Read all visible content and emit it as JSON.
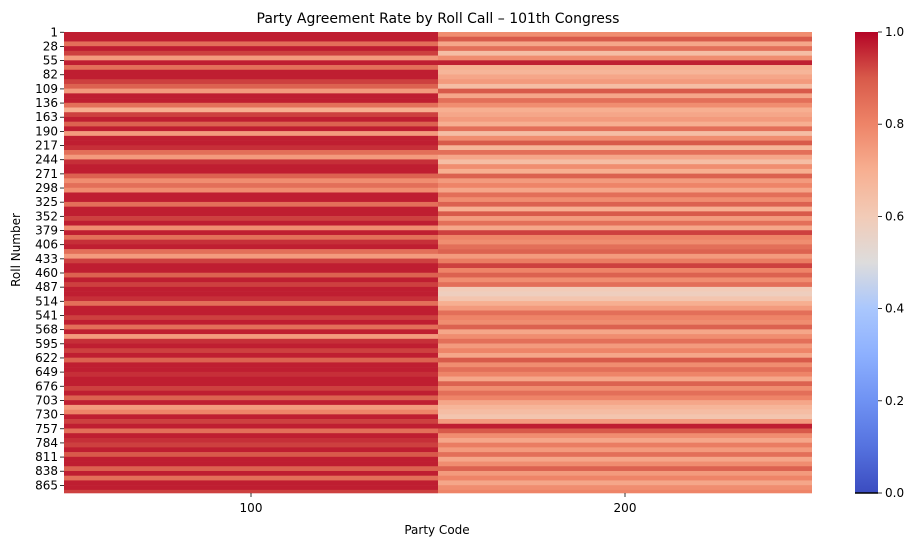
{
  "chart_data": {
    "type": "heatmap",
    "title": "Party Agreement Rate by Roll Call – 101th Congress",
    "xlabel": "Party Code",
    "ylabel": "Roll Number",
    "x_categories": [
      "100",
      "200"
    ],
    "y_tick_labels": [
      "1",
      "28",
      "55",
      "82",
      "109",
      "136",
      "163",
      "190",
      "217",
      "244",
      "271",
      "298",
      "325",
      "352",
      "379",
      "406",
      "433",
      "460",
      "487",
      "514",
      "541",
      "568",
      "595",
      "622",
      "649",
      "676",
      "703",
      "730",
      "757",
      "784",
      "811",
      "838",
      "865"
    ],
    "roll_range": [
      1,
      879
    ],
    "value_range": [
      0.0,
      1.0
    ],
    "colormap": "coolwarm",
    "colorbar_ticks": [
      "0.0",
      "0.2",
      "0.4",
      "0.6",
      "0.8",
      "1.0"
    ],
    "band_step": 9,
    "series": [
      {
        "name": "100",
        "values": [
          0.97,
          0.97,
          0.85,
          0.97,
          0.93,
          0.75,
          0.97,
          0.85,
          0.97,
          0.97,
          0.93,
          0.88,
          0.75,
          0.97,
          0.97,
          0.85,
          0.7,
          0.93,
          0.97,
          0.88,
          0.97,
          0.75,
          0.97,
          0.97,
          0.95,
          0.85,
          0.75,
          0.95,
          0.97,
          0.97,
          0.88,
          0.78,
          0.85,
          0.78,
          0.97,
          0.97,
          0.85,
          0.97,
          0.97,
          0.93,
          0.97,
          0.78,
          0.97,
          0.85,
          0.95,
          0.97,
          0.85,
          0.75,
          0.93,
          0.97,
          0.97,
          0.88,
          0.97,
          0.93,
          0.97,
          0.97,
          0.95,
          0.85,
          0.97,
          0.97,
          0.93,
          0.97,
          0.85,
          0.97,
          0.75,
          0.95,
          0.97,
          0.93,
          0.97,
          0.88,
          0.97,
          0.97,
          0.95,
          0.97,
          0.97,
          0.93,
          0.97,
          0.88,
          0.97,
          0.75,
          0.8,
          0.97,
          0.93,
          0.97,
          0.85,
          0.97,
          0.95,
          0.93,
          0.97,
          0.9,
          0.97,
          0.97,
          0.88,
          0.97,
          0.85,
          0.97,
          0.97,
          0.93
        ]
      },
      {
        "name": "200",
        "values": [
          0.78,
          0.9,
          0.72,
          0.85,
          0.65,
          0.78,
          0.97,
          0.7,
          0.68,
          0.72,
          0.75,
          0.65,
          0.9,
          0.72,
          0.85,
          0.78,
          0.7,
          0.72,
          0.75,
          0.7,
          0.85,
          0.65,
          0.78,
          0.9,
          0.68,
          0.85,
          0.72,
          0.65,
          0.78,
          0.7,
          0.88,
          0.75,
          0.8,
          0.72,
          0.85,
          0.78,
          0.88,
          0.7,
          0.9,
          0.75,
          0.85,
          0.72,
          0.93,
          0.8,
          0.78,
          0.85,
          0.88,
          0.75,
          0.82,
          0.93,
          0.8,
          0.88,
          0.78,
          0.85,
          0.6,
          0.58,
          0.62,
          0.7,
          0.75,
          0.85,
          0.8,
          0.78,
          0.88,
          0.72,
          0.78,
          0.85,
          0.75,
          0.8,
          0.72,
          0.9,
          0.78,
          0.85,
          0.8,
          0.72,
          0.88,
          0.78,
          0.85,
          0.8,
          0.72,
          0.68,
          0.65,
          0.62,
          0.75,
          0.97,
          0.9,
          0.78,
          0.72,
          0.82,
          0.75,
          0.85,
          0.72,
          0.78,
          0.88,
          0.75,
          0.8,
          0.72,
          0.78,
          0.8
        ]
      }
    ]
  }
}
